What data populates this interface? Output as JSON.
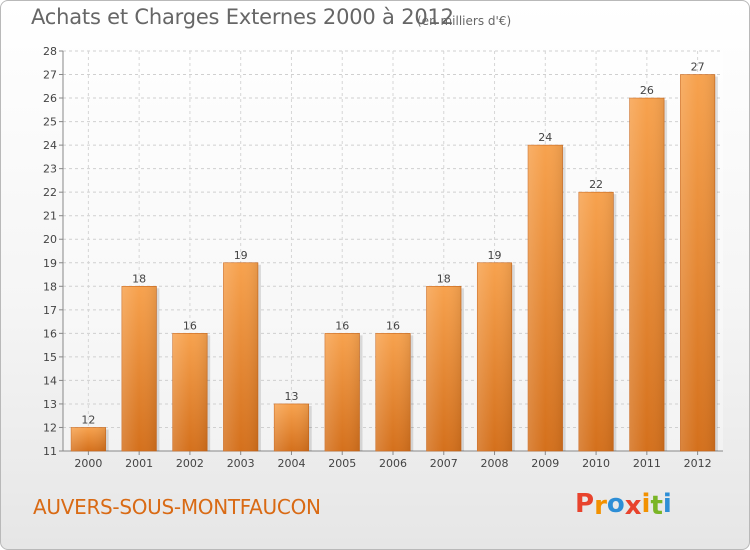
{
  "title": "Achats et Charges Externes 2000 à 2012",
  "subtitle": "(en milliers d'€)",
  "place": "AUVERS-SOUS-MONTFAUCON",
  "logo": {
    "text": "Proxiti",
    "colors": [
      "#e8432d",
      "#f29100",
      "#2d8ed6",
      "#e8432d",
      "#f29100",
      "#7ab526",
      "#2d8ed6"
    ]
  },
  "colors": {
    "bar_top": "#f7a24e",
    "bar_bottom": "#d4701c",
    "accent": "#d96a14"
  },
  "chart_data": {
    "type": "bar",
    "categories": [
      "2000",
      "2001",
      "2002",
      "2003",
      "2004",
      "2005",
      "2006",
      "2007",
      "2008",
      "2009",
      "2010",
      "2011",
      "2012"
    ],
    "values": [
      12,
      18,
      16,
      19,
      13,
      16,
      16,
      18,
      19,
      24,
      22,
      26,
      27
    ],
    "ylim": [
      11,
      28
    ],
    "yticks": [
      11,
      12,
      13,
      14,
      15,
      16,
      17,
      18,
      19,
      20,
      21,
      22,
      23,
      24,
      25,
      26,
      27,
      28
    ],
    "grid": true
  }
}
